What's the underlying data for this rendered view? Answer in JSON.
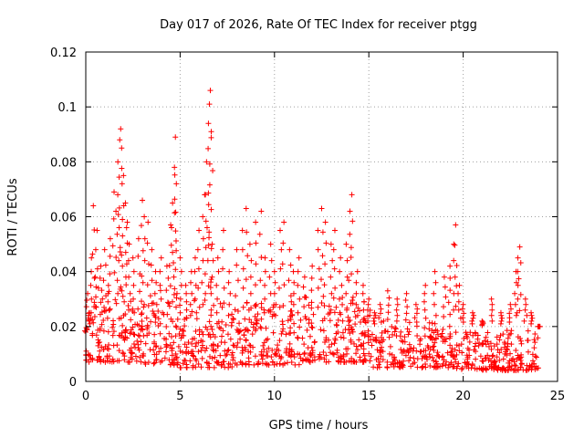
{
  "chart_data": {
    "type": "scatter",
    "title": "Day 017 of 2026, Rate Of TEC Index for receiver ptgg",
    "xlabel": "GPS time / hours",
    "ylabel": "ROTI / TECUs",
    "xlim": [
      0,
      25
    ],
    "ylim": [
      0,
      0.12
    ],
    "xticks": [
      0,
      5,
      10,
      15,
      20,
      25
    ],
    "xtick_labels": [
      "0",
      "5",
      "10",
      "15",
      "20",
      "25"
    ],
    "yticks": [
      0,
      0.02,
      0.04,
      0.06,
      0.08,
      0.1,
      0.12
    ],
    "ytick_labels": [
      "0",
      "0.02",
      "0.04",
      "0.06",
      "0.08",
      "0.1",
      "0.12"
    ],
    "grid": true,
    "marker": "+",
    "color": "#ff0000",
    "series": [
      {
        "name": "ROTI",
        "points": [
          [
            0.0,
            0.018
          ],
          [
            0.1,
            0.032
          ],
          [
            0.2,
            0.025
          ],
          [
            0.3,
            0.045
          ],
          [
            0.4,
            0.064
          ],
          [
            0.5,
            0.038
          ],
          [
            0.6,
            0.055
          ],
          [
            0.8,
            0.042
          ],
          [
            1.0,
            0.048
          ],
          [
            1.2,
            0.035
          ],
          [
            1.3,
            0.052
          ],
          [
            1.5,
            0.069
          ],
          [
            1.6,
            0.062
          ],
          [
            1.7,
            0.08
          ],
          [
            1.8,
            0.088
          ],
          [
            1.85,
            0.092
          ],
          [
            1.9,
            0.085
          ],
          [
            2.0,
            0.075
          ],
          [
            2.1,
            0.065
          ],
          [
            2.2,
            0.058
          ],
          [
            2.3,
            0.05
          ],
          [
            2.5,
            0.045
          ],
          [
            2.8,
            0.052
          ],
          [
            3.0,
            0.066
          ],
          [
            3.1,
            0.06
          ],
          [
            3.3,
            0.058
          ],
          [
            3.5,
            0.048
          ],
          [
            3.7,
            0.04
          ],
          [
            4.0,
            0.045
          ],
          [
            4.3,
            0.042
          ],
          [
            4.5,
            0.057
          ],
          [
            4.6,
            0.065
          ],
          [
            4.7,
            0.078
          ],
          [
            4.75,
            0.089
          ],
          [
            4.8,
            0.072
          ],
          [
            5.0,
            0.045
          ],
          [
            5.3,
            0.035
          ],
          [
            5.6,
            0.04
          ],
          [
            5.8,
            0.045
          ],
          [
            6.0,
            0.055
          ],
          [
            6.2,
            0.06
          ],
          [
            6.3,
            0.068
          ],
          [
            6.4,
            0.08
          ],
          [
            6.5,
            0.094
          ],
          [
            6.55,
            0.101
          ],
          [
            6.6,
            0.106
          ],
          [
            6.65,
            0.091
          ],
          [
            6.7,
            0.05
          ],
          [
            7.0,
            0.045
          ],
          [
            7.3,
            0.055
          ],
          [
            7.6,
            0.04
          ],
          [
            8.0,
            0.048
          ],
          [
            8.3,
            0.055
          ],
          [
            8.5,
            0.063
          ],
          [
            8.7,
            0.05
          ],
          [
            9.0,
            0.058
          ],
          [
            9.3,
            0.062
          ],
          [
            9.5,
            0.045
          ],
          [
            9.8,
            0.05
          ],
          [
            10.0,
            0.04
          ],
          [
            10.3,
            0.055
          ],
          [
            10.5,
            0.058
          ],
          [
            10.8,
            0.048
          ],
          [
            11.0,
            0.04
          ],
          [
            11.3,
            0.045
          ],
          [
            11.6,
            0.038
          ],
          [
            12.0,
            0.042
          ],
          [
            12.3,
            0.055
          ],
          [
            12.5,
            0.063
          ],
          [
            12.7,
            0.058
          ],
          [
            13.0,
            0.05
          ],
          [
            13.2,
            0.055
          ],
          [
            13.5,
            0.045
          ],
          [
            13.8,
            0.05
          ],
          [
            14.0,
            0.062
          ],
          [
            14.1,
            0.068
          ],
          [
            14.4,
            0.04
          ],
          [
            14.7,
            0.035
          ],
          [
            15.0,
            0.03
          ],
          [
            15.3,
            0.025
          ],
          [
            15.6,
            0.028
          ],
          [
            16.0,
            0.033
          ],
          [
            16.5,
            0.03
          ],
          [
            17.0,
            0.032
          ],
          [
            17.5,
            0.028
          ],
          [
            18.0,
            0.035
          ],
          [
            18.5,
            0.04
          ],
          [
            19.0,
            0.038
          ],
          [
            19.3,
            0.042
          ],
          [
            19.5,
            0.05
          ],
          [
            19.6,
            0.057
          ],
          [
            19.8,
            0.035
          ],
          [
            20.0,
            0.028
          ],
          [
            20.5,
            0.025
          ],
          [
            21.0,
            0.022
          ],
          [
            21.5,
            0.03
          ],
          [
            22.0,
            0.025
          ],
          [
            22.5,
            0.028
          ],
          [
            22.8,
            0.04
          ],
          [
            22.9,
            0.045
          ],
          [
            23.0,
            0.049
          ],
          [
            23.3,
            0.03
          ],
          [
            23.6,
            0.025
          ],
          [
            24.0,
            0.02
          ]
        ],
        "bands": [
          {
            "x": [
              0.0,
              3.0
            ],
            "low": 0.007,
            "high": 0.035
          },
          {
            "x": [
              3.0,
              5.0
            ],
            "low": 0.006,
            "high": 0.034
          },
          {
            "x": [
              5.0,
              8.0
            ],
            "low": 0.005,
            "high": 0.032
          },
          {
            "x": [
              8.0,
              11.5
            ],
            "low": 0.006,
            "high": 0.033
          },
          {
            "x": [
              11.5,
              15.2
            ],
            "low": 0.007,
            "high": 0.034
          },
          {
            "x": [
              15.2,
              19.5
            ],
            "low": 0.005,
            "high": 0.023
          },
          {
            "x": [
              19.5,
              24.0
            ],
            "low": 0.004,
            "high": 0.021
          }
        ]
      }
    ]
  }
}
